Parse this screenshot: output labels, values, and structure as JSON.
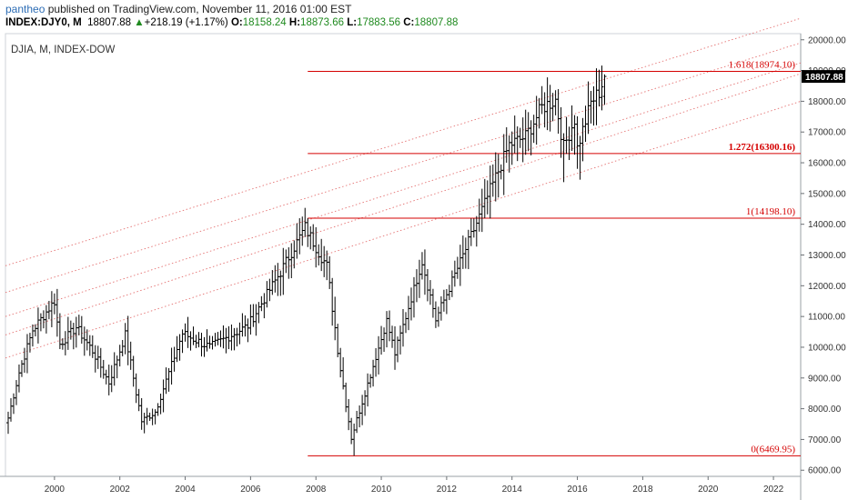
{
  "header": {
    "author": "pantheo",
    "published": " published on TradingView.com, November 11, 2016 01:00 EST",
    "symbol": "INDEX:DJY0, M",
    "last": "18807.88",
    "change_arrow": "▲",
    "change": "+218.19 (+1.17%)",
    "o_label": "O:",
    "o_value": "18158.24",
    "h_label": "H:",
    "h_value": "18873.66",
    "l_label": "L:",
    "l_value": "17883.56",
    "c_label": "C:",
    "c_value": "18807.88"
  },
  "colors": {
    "bar": "#000000",
    "fib_line": "#d50000",
    "channel_line": "#e57373",
    "price_box": "#000000",
    "header_green": "#1f8a1f",
    "author_blue": "#2d6db5"
  },
  "chart_data": {
    "type": "ohlc",
    "title": "DJIA, M, INDEX-DOW",
    "frequency": "monthly",
    "xlim": [
      "1998-07",
      "2022-11"
    ],
    "ylim": [
      5800,
      20200
    ],
    "x_ticks": [
      "2000",
      "2002",
      "2004",
      "2006",
      "2008",
      "2010",
      "2012",
      "2014",
      "2016",
      "2018",
      "2020",
      "2022"
    ],
    "y_ticks": [
      6000,
      7000,
      8000,
      9000,
      10000,
      11000,
      12000,
      13000,
      14000,
      15000,
      16000,
      17000,
      18000,
      19000,
      20000
    ],
    "y_tick_labels": [
      "6000.00",
      "7000.00",
      "8000.00",
      "9000.00",
      "10000.00",
      "11000.00",
      "12000.00",
      "13000.00",
      "14000.00",
      "15000.00",
      "16000.00",
      "17000.00",
      "18000.00",
      "19000.00",
      "20000.00"
    ],
    "last_price_label": "18807.88",
    "series_anchors": [
      {
        "date": "1998-08",
        "close": 7700
      },
      {
        "date": "1998-12",
        "close": 9180
      },
      {
        "date": "1999-05",
        "close": 10560
      },
      {
        "date": "2000-01",
        "close": 11500
      },
      {
        "date": "2000-03",
        "close": 10100
      },
      {
        "date": "2000-09",
        "close": 10650
      },
      {
        "date": "2001-03",
        "close": 9880
      },
      {
        "date": "2001-09",
        "close": 8850
      },
      {
        "date": "2002-03",
        "close": 10400
      },
      {
        "date": "2002-09",
        "close": 7600
      },
      {
        "date": "2003-02",
        "close": 7900
      },
      {
        "date": "2003-12",
        "close": 10450
      },
      {
        "date": "2004-10",
        "close": 10000
      },
      {
        "date": "2005-12",
        "close": 10700
      },
      {
        "date": "2006-12",
        "close": 12450
      },
      {
        "date": "2007-09",
        "close": 13900
      },
      {
        "date": "2008-05",
        "close": 12640
      },
      {
        "date": "2008-10",
        "close": 9300
      },
      {
        "date": "2009-02",
        "close": 7060
      },
      {
        "date": "2010-03",
        "close": 10850
      },
      {
        "date": "2010-06",
        "close": 9800
      },
      {
        "date": "2011-04",
        "close": 12800
      },
      {
        "date": "2011-09",
        "close": 10900
      },
      {
        "date": "2012-09",
        "close": 13400
      },
      {
        "date": "2013-05",
        "close": 15100
      },
      {
        "date": "2013-12",
        "close": 16580
      },
      {
        "date": "2014-06",
        "close": 16850
      },
      {
        "date": "2014-12",
        "close": 17800
      },
      {
        "date": "2015-05",
        "close": 18050
      },
      {
        "date": "2015-08",
        "close": 16500
      },
      {
        "date": "2015-12",
        "close": 17420
      },
      {
        "date": "2016-01",
        "close": 16470
      },
      {
        "date": "2016-06",
        "close": 17950
      },
      {
        "date": "2016-09",
        "close": 18300
      },
      {
        "date": "2016-11",
        "close": 18807.88
      }
    ],
    "series_extremes": [
      {
        "date": "2000-01",
        "high": 11750
      },
      {
        "date": "2002-10",
        "low": 7200
      },
      {
        "date": "2007-10",
        "high": 14198
      },
      {
        "date": "2009-03",
        "low": 6469.95
      },
      {
        "date": "2015-08",
        "low": 15370
      },
      {
        "date": "2016-02",
        "low": 15450
      },
      {
        "date": "2016-11",
        "high": 18873.66
      }
    ],
    "fib_levels": [
      {
        "value": 18974.1,
        "label": "1.618(18974.10)",
        "bold": false
      },
      {
        "value": 16300.16,
        "label": "1.272(16300.16)",
        "bold": true
      },
      {
        "value": 14198.1,
        "label": "1(14198.10)",
        "bold": false
      },
      {
        "value": 6469.95,
        "label": "0(6469.95)",
        "bold": false
      }
    ],
    "fib_start": "2007-10",
    "channel_lines": [
      {
        "from": {
          "date": "1998-07",
          "value": 12650
        },
        "to": {
          "date": "2022-11",
          "value": 20700
        }
      },
      {
        "from": {
          "date": "1998-07",
          "value": 11780
        },
        "to": {
          "date": "2022-11",
          "value": 19900
        }
      },
      {
        "from": {
          "date": "1998-07",
          "value": 11000
        },
        "to": {
          "date": "2022-11",
          "value": 19250
        }
      },
      {
        "from": {
          "date": "1998-07",
          "value": 10400
        },
        "to": {
          "date": "2022-11",
          "value": 18900
        }
      },
      {
        "from": {
          "date": "1998-07",
          "value": 9650
        },
        "to": {
          "date": "2022-11",
          "value": 18000
        }
      }
    ]
  }
}
